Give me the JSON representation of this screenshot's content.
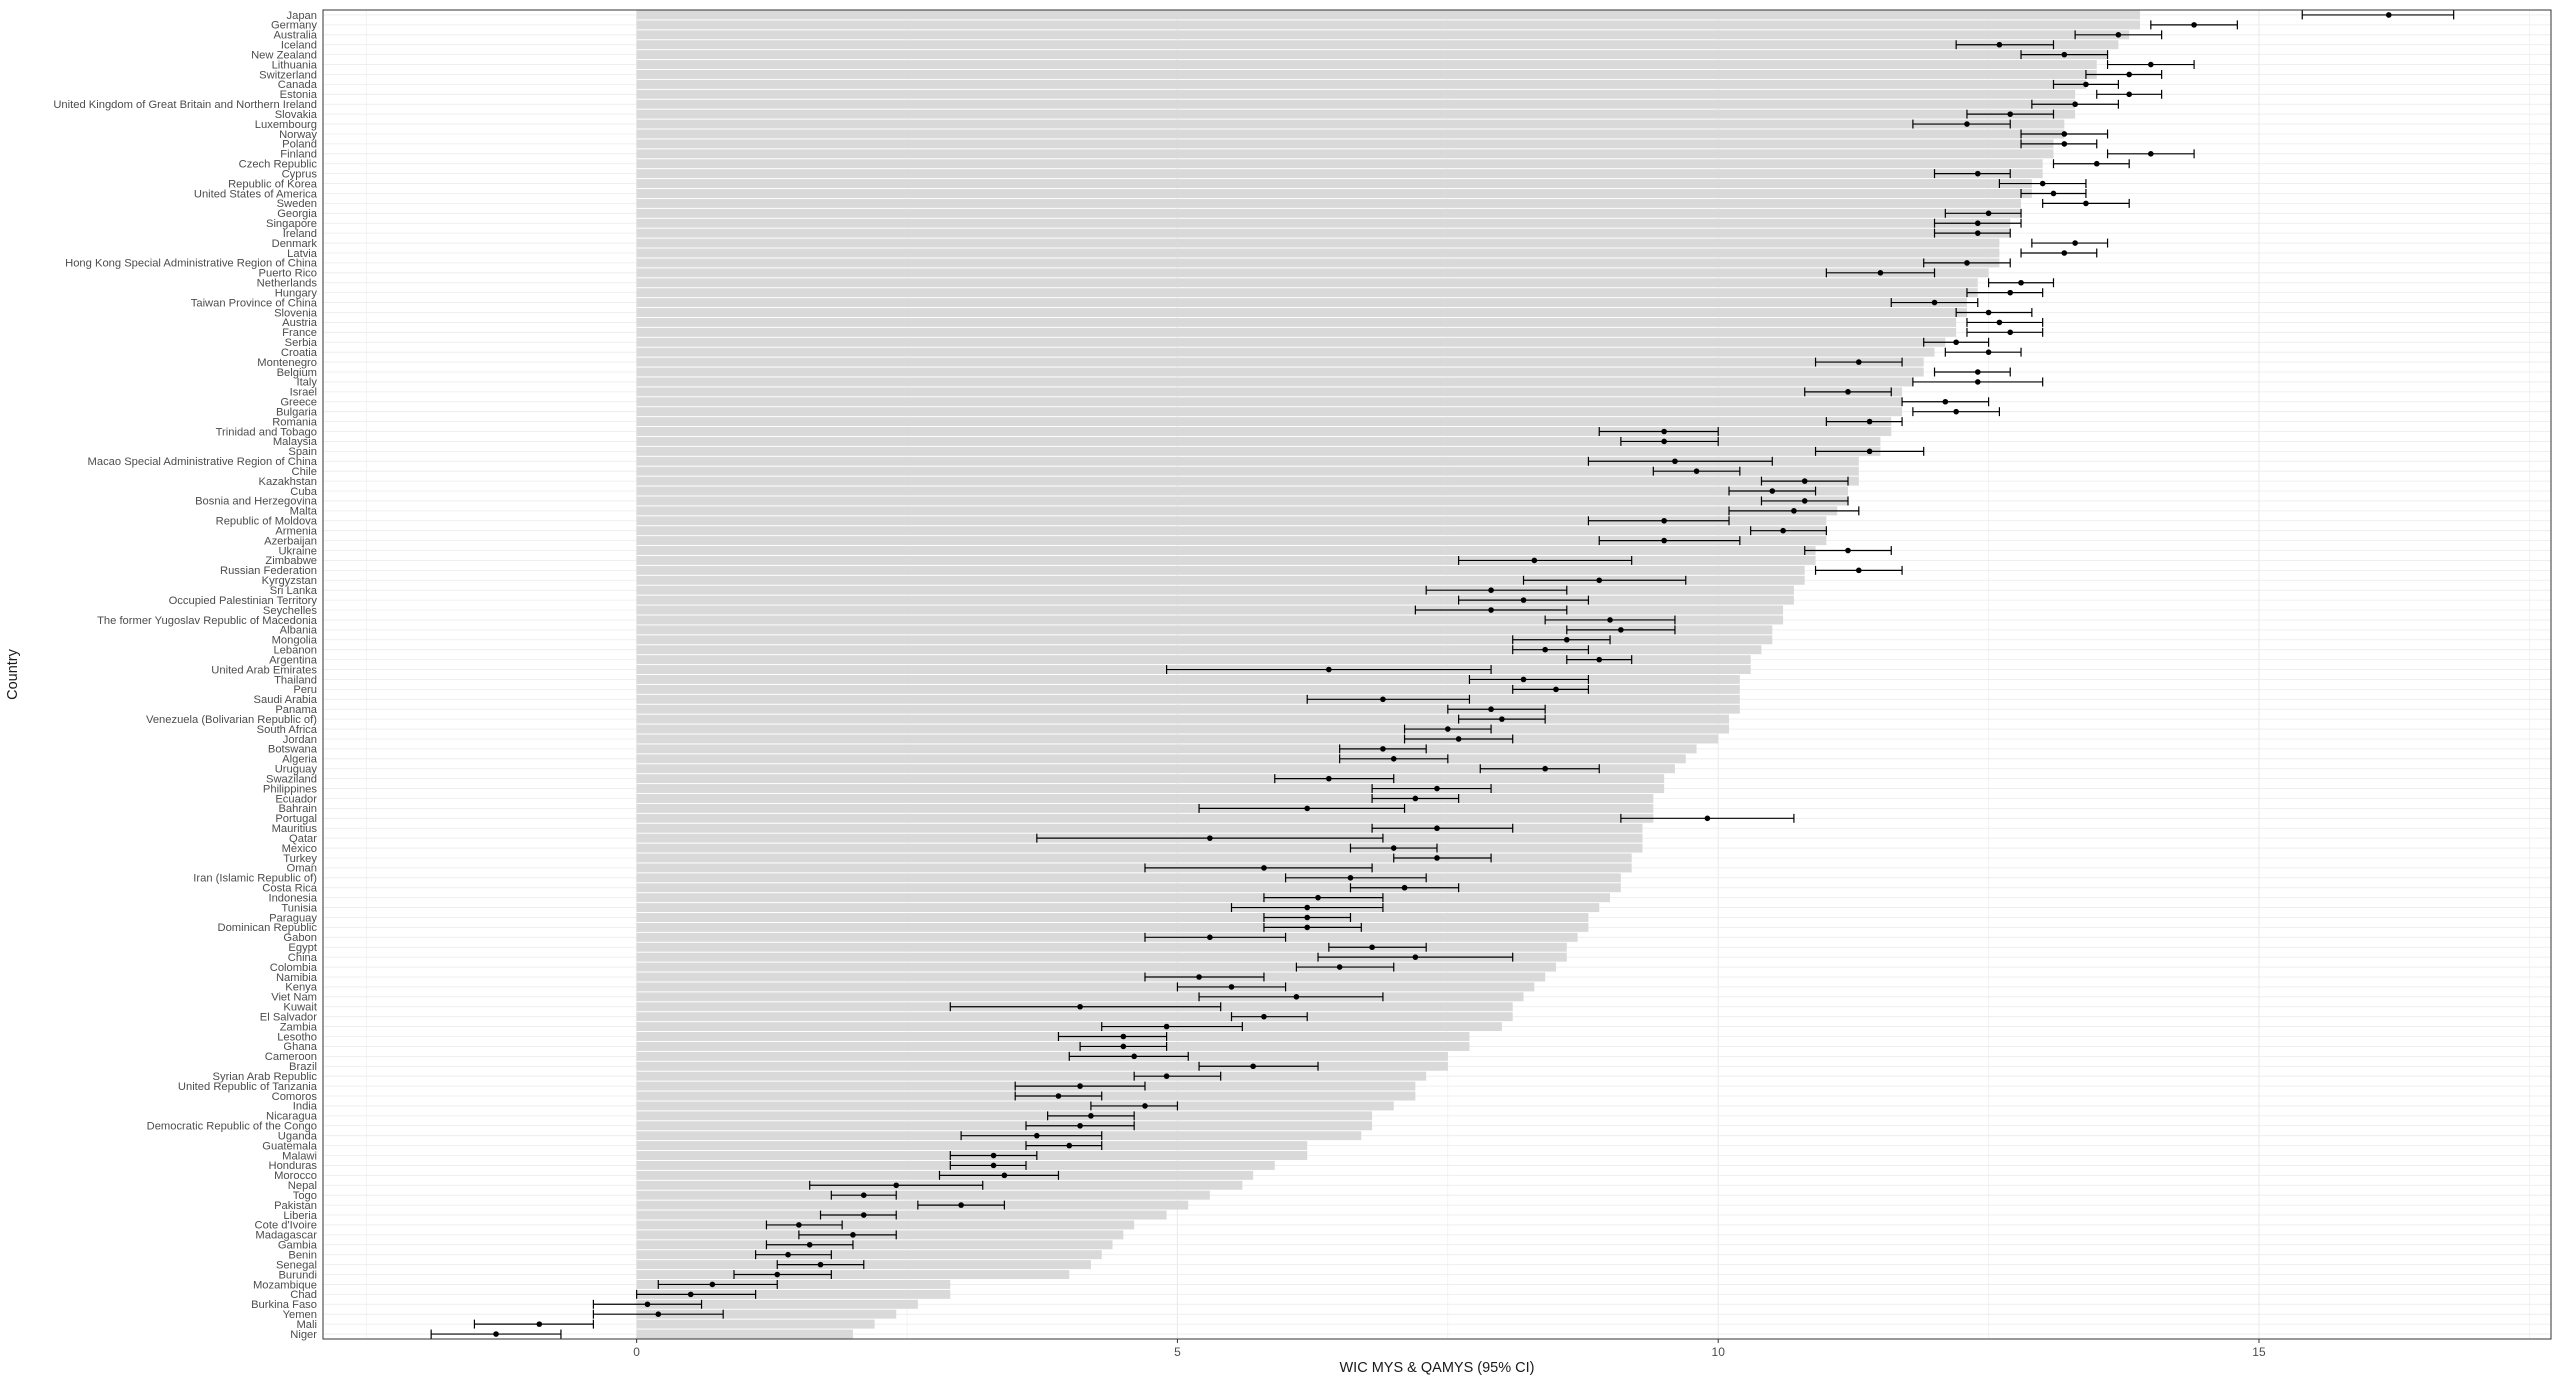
{
  "chart_data": {
    "type": "bar",
    "subtype": "horizontal bar with point estimates and 95% CI error bars",
    "xlabel": "WIC MYS & QAMYS (95% CI)",
    "ylabel": "Country",
    "xlim": [
      -2.9,
      17.7
    ],
    "xticks": [
      0,
      5,
      10,
      15
    ],
    "grid": true,
    "colors": {
      "bar": "#d9d9d9",
      "point": "#000000",
      "panel_border": "#333333",
      "grid": "#ebebeb"
    },
    "series": [
      {
        "name": "WIC MYS",
        "kind": "bar"
      },
      {
        "name": "QAMYS",
        "kind": "point",
        "error": "95% CI"
      }
    ],
    "rows": [
      {
        "country": "Japan",
        "bar": 13.9,
        "point": 16.2,
        "lo": 15.4,
        "hi": 16.8
      },
      {
        "country": "Germany",
        "bar": 13.9,
        "point": 14.4,
        "lo": 14.0,
        "hi": 14.8
      },
      {
        "country": "Australia",
        "bar": 13.8,
        "point": 13.7,
        "lo": 13.3,
        "hi": 14.1
      },
      {
        "country": "Iceland",
        "bar": 13.7,
        "point": 12.6,
        "lo": 12.2,
        "hi": 13.1
      },
      {
        "country": "New Zealand",
        "bar": 13.6,
        "point": 13.2,
        "lo": 12.8,
        "hi": 13.6
      },
      {
        "country": "Lithuania",
        "bar": 13.5,
        "point": 14.0,
        "lo": 13.6,
        "hi": 14.4
      },
      {
        "country": "Switzerland",
        "bar": 13.5,
        "point": 13.8,
        "lo": 13.4,
        "hi": 14.1
      },
      {
        "country": "Canada",
        "bar": 13.4,
        "point": 13.4,
        "lo": 13.1,
        "hi": 13.7
      },
      {
        "country": "Estonia",
        "bar": 13.3,
        "point": 13.8,
        "lo": 13.5,
        "hi": 14.1
      },
      {
        "country": "United Kingdom of Great Britain and Northern Ireland",
        "bar": 13.3,
        "point": 13.3,
        "lo": 12.9,
        "hi": 13.7
      },
      {
        "country": "Slovakia",
        "bar": 13.3,
        "point": 12.7,
        "lo": 12.3,
        "hi": 13.1
      },
      {
        "country": "Luxembourg",
        "bar": 13.2,
        "point": 12.3,
        "lo": 11.8,
        "hi": 12.7
      },
      {
        "country": "Norway",
        "bar": 13.2,
        "point": 13.2,
        "lo": 12.8,
        "hi": 13.6
      },
      {
        "country": "Poland",
        "bar": 13.1,
        "point": 13.2,
        "lo": 12.8,
        "hi": 13.5
      },
      {
        "country": "Finland",
        "bar": 13.1,
        "point": 14.0,
        "lo": 13.6,
        "hi": 14.4
      },
      {
        "country": "Czech Republic",
        "bar": 13.0,
        "point": 13.5,
        "lo": 13.1,
        "hi": 13.8
      },
      {
        "country": "Cyprus",
        "bar": 13.0,
        "point": 12.4,
        "lo": 12.0,
        "hi": 12.7
      },
      {
        "country": "Republic of Korea",
        "bar": 12.9,
        "point": 13.0,
        "lo": 12.6,
        "hi": 13.4
      },
      {
        "country": "United States of America",
        "bar": 12.9,
        "point": 13.1,
        "lo": 12.8,
        "hi": 13.4
      },
      {
        "country": "Sweden",
        "bar": 12.8,
        "point": 13.4,
        "lo": 13.0,
        "hi": 13.8
      },
      {
        "country": "Georgia",
        "bar": 12.8,
        "point": 12.5,
        "lo": 12.1,
        "hi": 12.8
      },
      {
        "country": "Singapore",
        "bar": 12.7,
        "point": 12.4,
        "lo": 12.0,
        "hi": 12.8
      },
      {
        "country": "Ireland",
        "bar": 12.7,
        "point": 12.4,
        "lo": 12.0,
        "hi": 12.7
      },
      {
        "country": "Denmark",
        "bar": 12.6,
        "point": 13.3,
        "lo": 12.9,
        "hi": 13.6
      },
      {
        "country": "Latvia",
        "bar": 12.6,
        "point": 13.2,
        "lo": 12.8,
        "hi": 13.5
      },
      {
        "country": "Hong Kong Special Administrative Region of China",
        "bar": 12.6,
        "point": 12.3,
        "lo": 11.9,
        "hi": 12.7
      },
      {
        "country": "Puerto Rico",
        "bar": 12.5,
        "point": 11.5,
        "lo": 11.0,
        "hi": 12.0
      },
      {
        "country": "Netherlands",
        "bar": 12.4,
        "point": 12.8,
        "lo": 12.5,
        "hi": 13.1
      },
      {
        "country": "Hungary",
        "bar": 12.4,
        "point": 12.7,
        "lo": 12.3,
        "hi": 13.0
      },
      {
        "country": "Taiwan Province of China",
        "bar": 12.3,
        "point": 12.0,
        "lo": 11.6,
        "hi": 12.4
      },
      {
        "country": "Slovenia",
        "bar": 12.3,
        "point": 12.5,
        "lo": 12.2,
        "hi": 12.9
      },
      {
        "country": "Austria",
        "bar": 12.2,
        "point": 12.6,
        "lo": 12.3,
        "hi": 13.0
      },
      {
        "country": "France",
        "bar": 12.2,
        "point": 12.7,
        "lo": 12.3,
        "hi": 13.0
      },
      {
        "country": "Serbia",
        "bar": 12.1,
        "point": 12.2,
        "lo": 11.9,
        "hi": 12.5
      },
      {
        "country": "Croatia",
        "bar": 12.0,
        "point": 12.5,
        "lo": 12.1,
        "hi": 12.8
      },
      {
        "country": "Montenegro",
        "bar": 11.9,
        "point": 11.3,
        "lo": 10.9,
        "hi": 11.7
      },
      {
        "country": "Belgium",
        "bar": 11.9,
        "point": 12.4,
        "lo": 12.0,
        "hi": 12.7
      },
      {
        "country": "Italy",
        "bar": 11.8,
        "point": 12.4,
        "lo": 11.8,
        "hi": 13.0
      },
      {
        "country": "Israel",
        "bar": 11.7,
        "point": 11.2,
        "lo": 10.8,
        "hi": 11.6
      },
      {
        "country": "Greece",
        "bar": 11.7,
        "point": 12.1,
        "lo": 11.7,
        "hi": 12.5
      },
      {
        "country": "Bulgaria",
        "bar": 11.7,
        "point": 12.2,
        "lo": 11.8,
        "hi": 12.6
      },
      {
        "country": "Romania",
        "bar": 11.6,
        "point": 11.4,
        "lo": 11.0,
        "hi": 11.7
      },
      {
        "country": "Trinidad and Tobago",
        "bar": 11.6,
        "point": 9.5,
        "lo": 8.9,
        "hi": 10.0
      },
      {
        "country": "Malaysia",
        "bar": 11.5,
        "point": 9.5,
        "lo": 9.1,
        "hi": 10.0
      },
      {
        "country": "Spain",
        "bar": 11.5,
        "point": 11.4,
        "lo": 10.9,
        "hi": 11.9
      },
      {
        "country": "Macao Special Administrative Region of China",
        "bar": 11.3,
        "point": 9.6,
        "lo": 8.8,
        "hi": 10.5
      },
      {
        "country": "Chile",
        "bar": 11.3,
        "point": 9.8,
        "lo": 9.4,
        "hi": 10.2
      },
      {
        "country": "Kazakhstan",
        "bar": 11.3,
        "point": 10.8,
        "lo": 10.4,
        "hi": 11.2
      },
      {
        "country": "Cuba",
        "bar": 11.2,
        "point": 10.5,
        "lo": 10.1,
        "hi": 10.9
      },
      {
        "country": "Bosnia and Herzegovina",
        "bar": 11.2,
        "point": 10.8,
        "lo": 10.4,
        "hi": 11.2
      },
      {
        "country": "Malta",
        "bar": 11.1,
        "point": 10.7,
        "lo": 10.1,
        "hi": 11.3
      },
      {
        "country": "Republic of Moldova",
        "bar": 11.0,
        "point": 9.5,
        "lo": 8.8,
        "hi": 10.1
      },
      {
        "country": "Armenia",
        "bar": 11.0,
        "point": 10.6,
        "lo": 10.3,
        "hi": 11.0
      },
      {
        "country": "Azerbaijan",
        "bar": 11.0,
        "point": 9.5,
        "lo": 8.9,
        "hi": 10.2
      },
      {
        "country": "Ukraine",
        "bar": 10.9,
        "point": 11.2,
        "lo": 10.8,
        "hi": 11.6
      },
      {
        "country": "Zimbabwe",
        "bar": 10.9,
        "point": 8.3,
        "lo": 7.6,
        "hi": 9.2
      },
      {
        "country": "Russian Federation",
        "bar": 10.8,
        "point": 11.3,
        "lo": 10.9,
        "hi": 11.7
      },
      {
        "country": "Kyrgyzstan",
        "bar": 10.8,
        "point": 8.9,
        "lo": 8.2,
        "hi": 9.7
      },
      {
        "country": "Sri Lanka",
        "bar": 10.7,
        "point": 7.9,
        "lo": 7.3,
        "hi": 8.6
      },
      {
        "country": "Occupied Palestinian Territory",
        "bar": 10.7,
        "point": 8.2,
        "lo": 7.6,
        "hi": 8.8
      },
      {
        "country": "Seychelles",
        "bar": 10.6,
        "point": 7.9,
        "lo": 7.2,
        "hi": 8.6
      },
      {
        "country": "The former Yugoslav Republic of Macedonia",
        "bar": 10.6,
        "point": 9.0,
        "lo": 8.4,
        "hi": 9.6
      },
      {
        "country": "Albania",
        "bar": 10.5,
        "point": 9.1,
        "lo": 8.6,
        "hi": 9.6
      },
      {
        "country": "Mongolia",
        "bar": 10.5,
        "point": 8.6,
        "lo": 8.1,
        "hi": 9.0
      },
      {
        "country": "Lebanon",
        "bar": 10.4,
        "point": 8.4,
        "lo": 8.1,
        "hi": 8.8
      },
      {
        "country": "Argentina",
        "bar": 10.3,
        "point": 8.9,
        "lo": 8.6,
        "hi": 9.2
      },
      {
        "country": "United Arab Emirates",
        "bar": 10.3,
        "point": 6.4,
        "lo": 4.9,
        "hi": 7.9
      },
      {
        "country": "Thailand",
        "bar": 10.2,
        "point": 8.2,
        "lo": 7.7,
        "hi": 8.8
      },
      {
        "country": "Peru",
        "bar": 10.2,
        "point": 8.5,
        "lo": 8.1,
        "hi": 8.8
      },
      {
        "country": "Saudi Arabia",
        "bar": 10.2,
        "point": 6.9,
        "lo": 6.2,
        "hi": 7.7
      },
      {
        "country": "Panama",
        "bar": 10.2,
        "point": 7.9,
        "lo": 7.5,
        "hi": 8.4
      },
      {
        "country": "Venezuela (Bolivarian Republic of)",
        "bar": 10.1,
        "point": 8.0,
        "lo": 7.6,
        "hi": 8.4
      },
      {
        "country": "South Africa",
        "bar": 10.1,
        "point": 7.5,
        "lo": 7.1,
        "hi": 7.9
      },
      {
        "country": "Jordan",
        "bar": 10.0,
        "point": 7.6,
        "lo": 7.1,
        "hi": 8.1
      },
      {
        "country": "Botswana",
        "bar": 9.8,
        "point": 6.9,
        "lo": 6.5,
        "hi": 7.3
      },
      {
        "country": "Algeria",
        "bar": 9.7,
        "point": 7.0,
        "lo": 6.5,
        "hi": 7.5
      },
      {
        "country": "Uruguay",
        "bar": 9.6,
        "point": 8.4,
        "lo": 7.8,
        "hi": 8.9
      },
      {
        "country": "Swaziland",
        "bar": 9.5,
        "point": 6.4,
        "lo": 5.9,
        "hi": 7.0
      },
      {
        "country": "Philippines",
        "bar": 9.5,
        "point": 7.4,
        "lo": 6.8,
        "hi": 7.9
      },
      {
        "country": "Ecuador",
        "bar": 9.4,
        "point": 7.2,
        "lo": 6.8,
        "hi": 7.6
      },
      {
        "country": "Bahrain",
        "bar": 9.4,
        "point": 6.2,
        "lo": 5.2,
        "hi": 7.1
      },
      {
        "country": "Portugal",
        "bar": 9.4,
        "point": 9.9,
        "lo": 9.1,
        "hi": 10.7
      },
      {
        "country": "Mauritius",
        "bar": 9.3,
        "point": 7.4,
        "lo": 6.8,
        "hi": 8.1
      },
      {
        "country": "Qatar",
        "bar": 9.3,
        "point": 5.3,
        "lo": 3.7,
        "hi": 6.9
      },
      {
        "country": "Mexico",
        "bar": 9.3,
        "point": 7.0,
        "lo": 6.6,
        "hi": 7.4
      },
      {
        "country": "Turkey",
        "bar": 9.2,
        "point": 7.4,
        "lo": 7.0,
        "hi": 7.9
      },
      {
        "country": "Oman",
        "bar": 9.2,
        "point": 5.8,
        "lo": 4.7,
        "hi": 6.8
      },
      {
        "country": "Iran (Islamic Republic of)",
        "bar": 9.1,
        "point": 6.6,
        "lo": 6.0,
        "hi": 7.3
      },
      {
        "country": "Costa Rica",
        "bar": 9.1,
        "point": 7.1,
        "lo": 6.6,
        "hi": 7.6
      },
      {
        "country": "Indonesia",
        "bar": 9.0,
        "point": 6.3,
        "lo": 5.8,
        "hi": 6.9
      },
      {
        "country": "Tunisia",
        "bar": 8.9,
        "point": 6.2,
        "lo": 5.5,
        "hi": 6.9
      },
      {
        "country": "Paraguay",
        "bar": 8.8,
        "point": 6.2,
        "lo": 5.8,
        "hi": 6.6
      },
      {
        "country": "Dominican Republic",
        "bar": 8.8,
        "point": 6.2,
        "lo": 5.8,
        "hi": 6.7
      },
      {
        "country": "Gabon",
        "bar": 8.7,
        "point": 5.3,
        "lo": 4.7,
        "hi": 6.0
      },
      {
        "country": "Egypt",
        "bar": 8.6,
        "point": 6.8,
        "lo": 6.4,
        "hi": 7.3
      },
      {
        "country": "China",
        "bar": 8.6,
        "point": 7.2,
        "lo": 6.3,
        "hi": 8.1
      },
      {
        "country": "Colombia",
        "bar": 8.5,
        "point": 6.5,
        "lo": 6.1,
        "hi": 7.0
      },
      {
        "country": "Namibia",
        "bar": 8.4,
        "point": 5.2,
        "lo": 4.7,
        "hi": 5.8
      },
      {
        "country": "Kenya",
        "bar": 8.3,
        "point": 5.5,
        "lo": 5.0,
        "hi": 6.0
      },
      {
        "country": "Viet Nam",
        "bar": 8.2,
        "point": 6.1,
        "lo": 5.2,
        "hi": 6.9
      },
      {
        "country": "Kuwait",
        "bar": 8.1,
        "point": 4.1,
        "lo": 2.9,
        "hi": 5.4
      },
      {
        "country": "El Salvador",
        "bar": 8.1,
        "point": 5.8,
        "lo": 5.5,
        "hi": 6.2
      },
      {
        "country": "Zambia",
        "bar": 8.0,
        "point": 4.9,
        "lo": 4.3,
        "hi": 5.6
      },
      {
        "country": "Lesotho",
        "bar": 7.7,
        "point": 4.5,
        "lo": 3.9,
        "hi": 4.9
      },
      {
        "country": "Ghana",
        "bar": 7.7,
        "point": 4.5,
        "lo": 4.1,
        "hi": 4.9
      },
      {
        "country": "Cameroon",
        "bar": 7.5,
        "point": 4.6,
        "lo": 4.0,
        "hi": 5.1
      },
      {
        "country": "Brazil",
        "bar": 7.5,
        "point": 5.7,
        "lo": 5.2,
        "hi": 6.3
      },
      {
        "country": "Syrian Arab Republic",
        "bar": 7.3,
        "point": 4.9,
        "lo": 4.6,
        "hi": 5.4
      },
      {
        "country": "United Republic of Tanzania",
        "bar": 7.2,
        "point": 4.1,
        "lo": 3.5,
        "hi": 4.7
      },
      {
        "country": "Comoros",
        "bar": 7.2,
        "point": 3.9,
        "lo": 3.5,
        "hi": 4.3
      },
      {
        "country": "India",
        "bar": 7.0,
        "point": 4.7,
        "lo": 4.2,
        "hi": 5.0
      },
      {
        "country": "Nicaragua",
        "bar": 6.8,
        "point": 4.2,
        "lo": 3.8,
        "hi": 4.6
      },
      {
        "country": "Democratic Republic of the Congo",
        "bar": 6.8,
        "point": 4.1,
        "lo": 3.6,
        "hi": 4.6
      },
      {
        "country": "Uganda",
        "bar": 6.7,
        "point": 3.7,
        "lo": 3.0,
        "hi": 4.3
      },
      {
        "country": "Guatemala",
        "bar": 6.2,
        "point": 4.0,
        "lo": 3.6,
        "hi": 4.3
      },
      {
        "country": "Malawi",
        "bar": 6.2,
        "point": 3.3,
        "lo": 2.9,
        "hi": 3.7
      },
      {
        "country": "Honduras",
        "bar": 5.9,
        "point": 3.3,
        "lo": 2.9,
        "hi": 3.6
      },
      {
        "country": "Morocco",
        "bar": 5.7,
        "point": 3.4,
        "lo": 2.8,
        "hi": 3.9
      },
      {
        "country": "Nepal",
        "bar": 5.6,
        "point": 2.4,
        "lo": 1.6,
        "hi": 3.2
      },
      {
        "country": "Togo",
        "bar": 5.3,
        "point": 2.1,
        "lo": 1.8,
        "hi": 2.4
      },
      {
        "country": "Pakistan",
        "bar": 5.1,
        "point": 3.0,
        "lo": 2.6,
        "hi": 3.4
      },
      {
        "country": "Liberia",
        "bar": 4.9,
        "point": 2.1,
        "lo": 1.7,
        "hi": 2.4
      },
      {
        "country": "Cote d'Ivoire",
        "bar": 4.6,
        "point": 1.5,
        "lo": 1.2,
        "hi": 1.9
      },
      {
        "country": "Madagascar",
        "bar": 4.5,
        "point": 2.0,
        "lo": 1.5,
        "hi": 2.4
      },
      {
        "country": "Gambia",
        "bar": 4.4,
        "point": 1.6,
        "lo": 1.2,
        "hi": 2.0
      },
      {
        "country": "Benin",
        "bar": 4.3,
        "point": 1.4,
        "lo": 1.1,
        "hi": 1.8
      },
      {
        "country": "Senegal",
        "bar": 4.2,
        "point": 1.7,
        "lo": 1.3,
        "hi": 2.1
      },
      {
        "country": "Burundi",
        "bar": 4.0,
        "point": 1.3,
        "lo": 0.9,
        "hi": 1.8
      },
      {
        "country": "Mozambique",
        "bar": 2.9,
        "point": 0.7,
        "lo": 0.2,
        "hi": 1.3
      },
      {
        "country": "Chad",
        "bar": 2.9,
        "point": 0.5,
        "lo": 0.0,
        "hi": 1.1
      },
      {
        "country": "Burkina Faso",
        "bar": 2.6,
        "point": 0.1,
        "lo": -0.4,
        "hi": 0.6
      },
      {
        "country": "Yemen",
        "bar": 2.4,
        "point": 0.2,
        "lo": -0.4,
        "hi": 0.8
      },
      {
        "country": "Mali",
        "bar": 2.2,
        "point": -0.9,
        "lo": -1.5,
        "hi": -0.4
      },
      {
        "country": "Niger",
        "bar": 2.0,
        "point": -1.3,
        "lo": -1.9,
        "hi": -0.7
      }
    ]
  }
}
